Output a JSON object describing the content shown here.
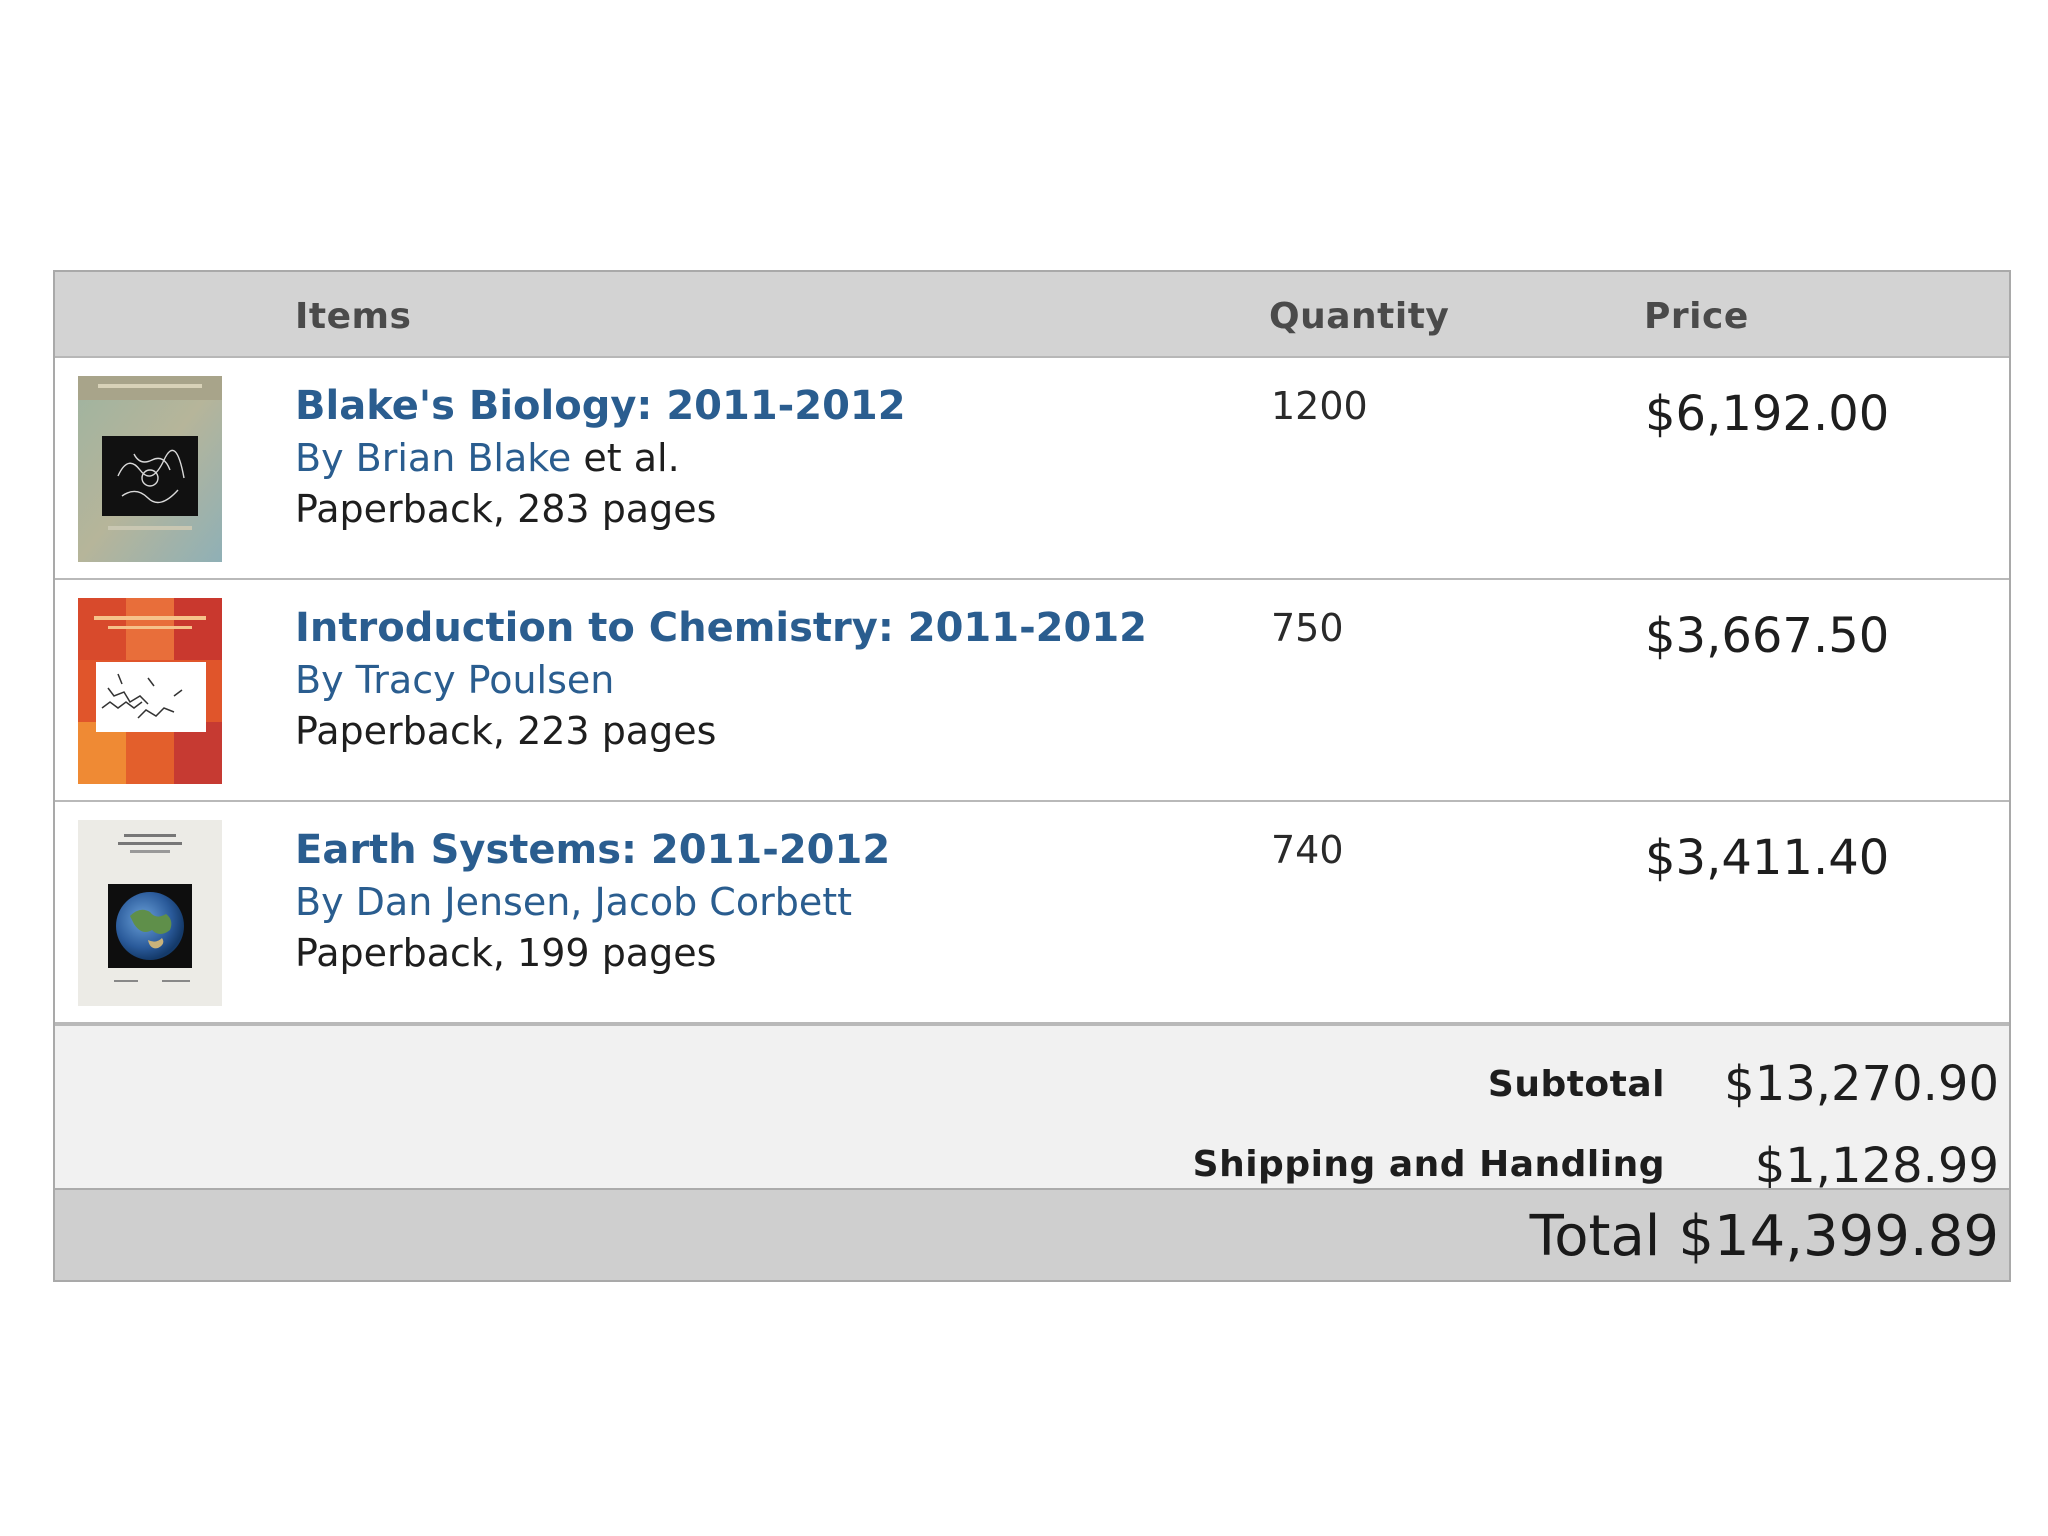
{
  "table": {
    "headers": {
      "items": "Items",
      "quantity": "Quantity",
      "price": "Price"
    }
  },
  "items": [
    {
      "title": "Blake's Biology: 2011-2012",
      "by": "By",
      "authors": "Brian Blake",
      "authors_suffix": "et al.",
      "format": "Paperback, 283 pages",
      "quantity": "1200",
      "price": "$6,192.00",
      "cover_icon": "biology-book-cover"
    },
    {
      "title": "Introduction to Chemistry: 2011-2012",
      "by": "By",
      "authors": "Tracy Poulsen",
      "authors_suffix": "",
      "format": "Paperback, 223 pages",
      "quantity": "750",
      "price": "$3,667.50",
      "cover_icon": "chemistry-book-cover"
    },
    {
      "title": "Earth Systems: 2011-2012",
      "by": "By",
      "authors": "Dan Jensen, Jacob Corbett",
      "authors_suffix": "",
      "format": "Paperback, 199 pages",
      "quantity": "740",
      "price": "$3,411.40",
      "cover_icon": "earth-book-cover"
    }
  ],
  "summary": {
    "subtotal_label": "Subtotal",
    "subtotal_value": "$13,270.90",
    "shipping_label": "Shipping and Handling",
    "shipping_value": "$1,128.99",
    "total_label": "Total",
    "total_value": "$14,399.89"
  },
  "colors": {
    "link": "#2a5d8f",
    "header_bg": "#d3d3d3",
    "summary_bg": "#f1f1f1",
    "total_bg": "#cfcfcf"
  }
}
